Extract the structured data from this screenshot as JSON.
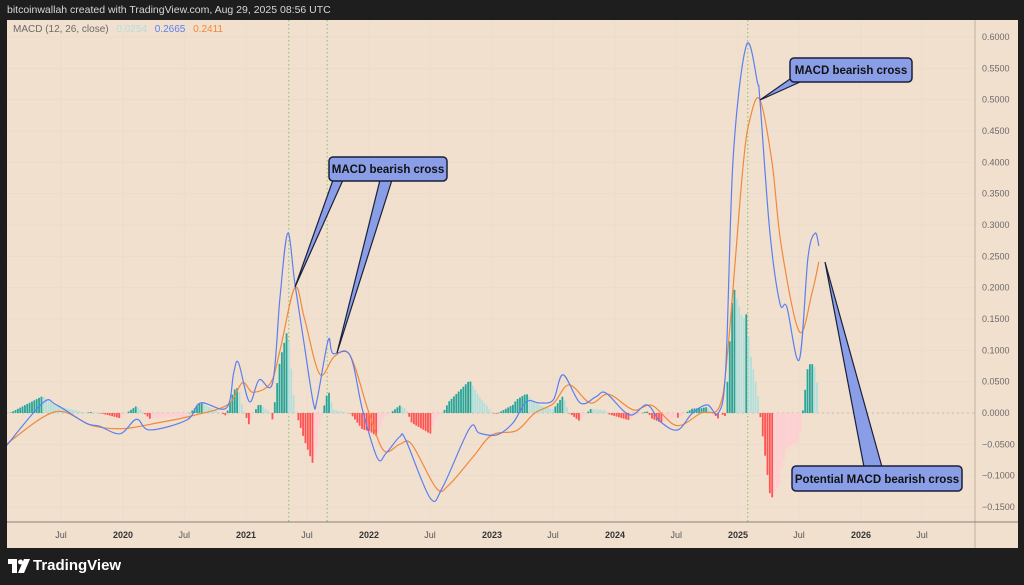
{
  "header": {
    "text": "bitcoinwallah created with TradingView.com, Aug 29, 2025 08:56 UTC"
  },
  "legend": {
    "indicator": "MACD (12, 26, close)",
    "histogram_value": "0.0254",
    "macd_value": "0.2665",
    "signal_value": "0.2411"
  },
  "footer": {
    "logo_text": "TradingView",
    "logo_icon": "tradingview-logo-icon"
  },
  "colors": {
    "background": "#f2e0cf",
    "macd": "#5b7ff0",
    "signal": "#f2883a",
    "hist_up_strong": "#26a69a",
    "hist_up_weak": "#b2dfdb",
    "hist_down_strong": "#ff5252",
    "hist_down_weak": "#ffcdd2",
    "marker_line": "#7cc36a",
    "callout_fill": "#8a9ee8"
  },
  "annotations": [
    {
      "text": "MACD bearish cross"
    },
    {
      "text": "MACD bearish cross"
    },
    {
      "text": "Potential MACD bearish cross"
    }
  ],
  "chart_data": {
    "type": "line",
    "title": "",
    "x_ticks": [
      {
        "label": "Jul",
        "date": "2019-07-01"
      },
      {
        "label": "2020",
        "date": "2020-01-01",
        "year": true
      },
      {
        "label": "Jul",
        "date": "2020-07-01"
      },
      {
        "label": "2021",
        "date": "2021-01-01",
        "year": true
      },
      {
        "label": "Jul",
        "date": "2021-07-01"
      },
      {
        "label": "2022",
        "date": "2022-01-01",
        "year": true
      },
      {
        "label": "Jul",
        "date": "2022-07-01"
      },
      {
        "label": "2023",
        "date": "2023-01-01",
        "year": true
      },
      {
        "label": "Jul",
        "date": "2023-07-01"
      },
      {
        "label": "2024",
        "date": "2024-01-01",
        "year": true
      },
      {
        "label": "Jul",
        "date": "2024-07-01"
      },
      {
        "label": "2025",
        "date": "2025-01-01",
        "year": true
      },
      {
        "label": "Jul",
        "date": "2025-07-01"
      },
      {
        "label": "2026",
        "date": "2026-01-01",
        "year": true
      },
      {
        "label": "Jul",
        "date": "2026-07-01"
      }
    ],
    "y_ticks": [
      "0.6000",
      "0.5500",
      "0.5000",
      "0.4500",
      "0.4000",
      "0.3500",
      "0.3000",
      "0.2500",
      "0.2000",
      "0.1500",
      "0.1000",
      "0.0500",
      "0.0000",
      "−0.0500",
      "−0.1000",
      "−0.1500"
    ],
    "ylim": [
      -0.17,
      0.65
    ],
    "grid": true,
    "vertical_markers": [
      "2021-05-08",
      "2021-08-30",
      "2025-01-30"
    ],
    "series": [
      {
        "key": "macd",
        "points": [
          [
            "2019-01-19",
            -0.053
          ],
          [
            "2019-05-08",
            0.016
          ],
          [
            "2019-06-17",
            0.013
          ],
          [
            "2019-09-13",
            -0.016
          ],
          [
            "2019-10-23",
            -0.021
          ],
          [
            "2019-12-24",
            -0.033
          ],
          [
            "2020-02-10",
            -0.01
          ],
          [
            "2020-03-21",
            -0.027
          ],
          [
            "2020-07-09",
            -0.011
          ],
          [
            "2020-08-18",
            0.016
          ],
          [
            "2020-11-03",
            0.008
          ],
          [
            "2020-11-25",
            0.065
          ],
          [
            "2020-12-09",
            0.08
          ],
          [
            "2021-01-11",
            0.018
          ],
          [
            "2021-02-09",
            0.053
          ],
          [
            "2021-03-21",
            0.048
          ],
          [
            "2021-04-12",
            0.185
          ],
          [
            "2021-05-05",
            0.287
          ],
          [
            "2021-05-26",
            0.207
          ],
          [
            "2021-06-21",
            0.116
          ],
          [
            "2021-07-20",
            0.016
          ],
          [
            "2021-07-31",
            0.021
          ],
          [
            "2021-09-02",
            0.116
          ],
          [
            "2021-09-16",
            0.095
          ],
          [
            "2021-11-06",
            0.092
          ],
          [
            "2021-12-13",
            0.005
          ],
          [
            "2022-01-26",
            -0.072
          ],
          [
            "2022-02-21",
            -0.064
          ],
          [
            "2022-04-02",
            -0.038
          ],
          [
            "2022-04-20",
            -0.043
          ],
          [
            "2022-07-02",
            -0.136
          ],
          [
            "2022-08-08",
            -0.118
          ],
          [
            "2022-10-27",
            -0.024
          ],
          [
            "2022-11-24",
            -0.032
          ],
          [
            "2023-01-15",
            -0.035
          ],
          [
            "2023-03-04",
            -0.016
          ],
          [
            "2023-04-13",
            0.018
          ],
          [
            "2023-05-23",
            0.016
          ],
          [
            "2023-07-02",
            0.021
          ],
          [
            "2023-07-31",
            0.061
          ],
          [
            "2023-09-20",
            0.016
          ],
          [
            "2023-11-06",
            0.026
          ],
          [
            "2023-12-05",
            0.032
          ],
          [
            "2024-02-13",
            -0.003
          ],
          [
            "2024-04-05",
            0.013
          ],
          [
            "2024-05-15",
            -0.014
          ],
          [
            "2024-07-05",
            -0.027
          ],
          [
            "2024-08-18",
            0.0
          ],
          [
            "2024-10-01",
            0.013
          ],
          [
            "2024-11-03",
            0.0
          ],
          [
            "2024-11-25",
            0.073
          ],
          [
            "2024-12-17",
            0.408
          ],
          [
            "2025-01-26",
            0.587
          ],
          [
            "2025-02-28",
            0.527
          ],
          [
            "2025-03-07",
            0.5
          ],
          [
            "2025-04-05",
            0.292
          ],
          [
            "2025-05-05",
            0.176
          ],
          [
            "2025-05-26",
            0.169
          ],
          [
            "2025-07-02",
            0.085
          ],
          [
            "2025-07-28",
            0.249
          ],
          [
            "2025-08-18",
            0.287
          ],
          [
            "2025-08-29",
            0.2665
          ]
        ]
      },
      {
        "key": "signal",
        "points": [
          [
            "2019-01-19",
            -0.05
          ],
          [
            "2019-06-14",
            0.002
          ],
          [
            "2019-10-01",
            -0.02
          ],
          [
            "2020-01-01",
            -0.025
          ],
          [
            "2020-04-20",
            -0.015
          ],
          [
            "2020-07-20",
            -0.005
          ],
          [
            "2020-11-06",
            0.013
          ],
          [
            "2020-12-20",
            0.048
          ],
          [
            "2021-01-22",
            0.033
          ],
          [
            "2021-03-15",
            0.048
          ],
          [
            "2021-04-12",
            0.1
          ],
          [
            "2021-05-26",
            0.2
          ],
          [
            "2021-06-24",
            0.15
          ],
          [
            "2021-08-08",
            0.062
          ],
          [
            "2021-09-20",
            0.09
          ],
          [
            "2021-11-06",
            0.092
          ],
          [
            "2022-01-01",
            0.0
          ],
          [
            "2022-02-14",
            -0.06
          ],
          [
            "2022-04-02",
            -0.05
          ],
          [
            "2022-05-08",
            -0.05
          ],
          [
            "2022-07-20",
            -0.12
          ],
          [
            "2022-08-26",
            -0.115
          ],
          [
            "2022-11-06",
            -0.07
          ],
          [
            "2023-01-01",
            -0.035
          ],
          [
            "2023-03-15",
            -0.028
          ],
          [
            "2023-05-08",
            0.0
          ],
          [
            "2023-07-02",
            0.015
          ],
          [
            "2023-08-18",
            0.045
          ],
          [
            "2023-10-20",
            0.016
          ],
          [
            "2023-12-13",
            0.03
          ],
          [
            "2024-02-24",
            0.005
          ],
          [
            "2024-04-20",
            0.012
          ],
          [
            "2024-07-02",
            -0.02
          ],
          [
            "2024-09-13",
            0.0
          ],
          [
            "2024-11-06",
            0.01
          ],
          [
            "2024-12-01",
            0.1
          ],
          [
            "2025-01-15",
            0.388
          ],
          [
            "2025-02-06",
            0.47
          ],
          [
            "2025-03-07",
            0.5
          ],
          [
            "2025-04-12",
            0.4
          ],
          [
            "2025-05-10",
            0.265
          ],
          [
            "2025-07-02",
            0.13
          ],
          [
            "2025-08-08",
            0.19
          ],
          [
            "2025-08-29",
            0.2411
          ]
        ]
      }
    ],
    "histogram": "macd minus signal, weekly"
  }
}
